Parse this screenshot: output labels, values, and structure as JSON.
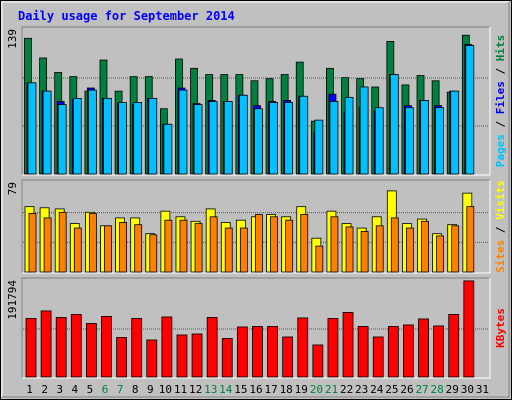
{
  "chart_data": {
    "type": "bar",
    "title": "Daily usage for September 2014",
    "x": [
      "1",
      "2",
      "3",
      "4",
      "5",
      "6",
      "7",
      "8",
      "9",
      "10",
      "11",
      "12",
      "13",
      "14",
      "15",
      "16",
      "17",
      "18",
      "19",
      "20",
      "21",
      "22",
      "23",
      "24",
      "25",
      "26",
      "27",
      "28",
      "29",
      "30",
      "31"
    ],
    "weekend_days": [
      "6",
      "7",
      "13",
      "14",
      "20",
      "21",
      "27",
      "28"
    ],
    "panels": [
      {
        "id": "top",
        "ymax_label": "139",
        "ylim": [
          0,
          139
        ],
        "grid": true,
        "side_labels": [
          "Pages",
          "Files",
          "Hits"
        ],
        "series": [
          {
            "name": "Hits",
            "color": "#008040",
            "values": [
              131,
              112,
              98,
              94,
              80,
              110,
              80,
              94,
              94,
              63,
              111,
              102,
              96,
              96,
              96,
              90,
              92,
              96,
              108,
              51,
              102,
              93,
              92,
              84,
              128,
              86,
              95,
              90,
              79,
              134,
              0
            ]
          },
          {
            "name": "Files",
            "color": "#0000ff",
            "values": [
              88,
              80,
              70,
              72,
              83,
              73,
              68,
              67,
              73,
              48,
              83,
              68,
              71,
              70,
              76,
              66,
              70,
              71,
              75,
              40,
              77,
              60,
              64,
              61,
              96,
              66,
              71,
              66,
              80,
              125,
              0
            ]
          },
          {
            "name": "Pages",
            "color": "#00c0ff",
            "values": [
              88,
              80,
              67,
              73,
              81,
              73,
              69,
              69,
              73,
              48,
              81,
              67,
              70,
              70,
              76,
              63,
              69,
              69,
              75,
              52,
              70,
              74,
              84,
              64,
              96,
              64,
              71,
              64,
              80,
              124,
              0
            ]
          }
        ]
      },
      {
        "id": "middle",
        "ymax_label": "79",
        "ylim": [
          0,
          79
        ],
        "grid": true,
        "side_labels": [
          "Sites",
          "Visits"
        ],
        "series": [
          {
            "name": "Visits",
            "color": "#ffff00",
            "values": [
              58,
              57,
              56,
              43,
              53,
              41,
              48,
              48,
              34,
              54,
              49,
              45,
              56,
              44,
              46,
              49,
              51,
              49,
              58,
              30,
              54,
              43,
              39,
              49,
              72,
              43,
              47,
              34,
              42,
              70,
              0
            ]
          },
          {
            "name": "Sites",
            "color": "#ff8000",
            "values": [
              52,
              48,
              53,
              39,
              52,
              41,
              44,
              42,
              33,
              46,
              46,
              43,
              49,
              39,
              39,
              51,
              49,
              46,
              51,
              23,
              49,
              40,
              36,
              41,
              48,
              39,
              45,
              32,
              41,
              58,
              0
            ]
          }
        ]
      },
      {
        "id": "bottom",
        "ymax_label": "191794",
        "ylim": [
          0,
          191794
        ],
        "grid": true,
        "side_labels": [
          "KBytes"
        ],
        "series": [
          {
            "name": "KBytes",
            "color": "#ff0000",
            "values": [
              117000,
              132000,
              119000,
              125000,
              107000,
              121000,
              79000,
              117000,
              74000,
              120000,
              84000,
              86000,
              119000,
              77000,
              100000,
              101000,
              101000,
              80000,
              118000,
              64000,
              117000,
              129000,
              101000,
              80000,
              101000,
              104000,
              116000,
              102000,
              125000,
              192000,
              0
            ]
          }
        ]
      }
    ],
    "colors": {
      "background": "#c0c0c0",
      "title": "#0000ff",
      "weekend_day_label": "#008040",
      "weekday_label": "#000000",
      "Pages": "#00c0ff",
      "Files": "#0000ff",
      "Hits": "#008040",
      "Sites": "#ff8000",
      "Visits": "#ffff00",
      "KBytes": "#ff0000"
    }
  }
}
